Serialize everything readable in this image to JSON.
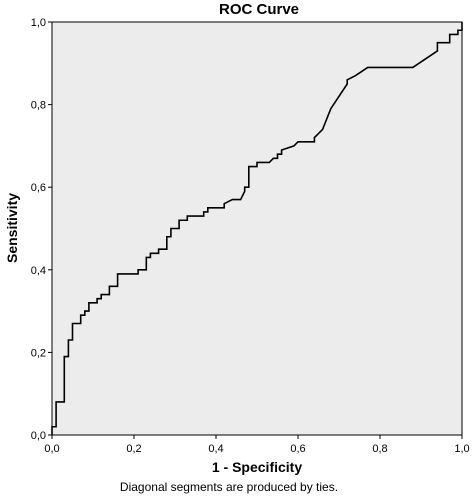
{
  "chart_data": {
    "type": "line",
    "title": "ROC Curve",
    "xlabel": "1 - Specificity",
    "ylabel": "Sensitivity",
    "footnote": "Diagonal segments are produced by ties.",
    "xlim": [
      0,
      1
    ],
    "ylim": [
      0,
      1
    ],
    "x_ticks": [
      "0,0",
      "0,2",
      "0,4",
      "0,6",
      "0,8",
      "1,0"
    ],
    "y_ticks": [
      "0,0",
      "0,2",
      "0,4",
      "0,6",
      "0,8",
      "1,0"
    ],
    "grid": false,
    "plot_background": "#ececec",
    "line_color": "#000000",
    "series": [
      {
        "x": [
          0.0,
          0.0,
          0.01,
          0.01,
          0.03,
          0.03,
          0.04,
          0.04,
          0.05,
          0.05,
          0.07,
          0.07,
          0.08,
          0.08,
          0.09,
          0.09,
          0.11,
          0.11,
          0.12,
          0.12,
          0.14,
          0.14,
          0.16,
          0.16,
          0.21,
          0.21,
          0.23,
          0.23,
          0.24,
          0.24,
          0.26,
          0.26,
          0.28,
          0.28,
          0.29,
          0.29,
          0.31,
          0.31,
          0.33,
          0.33,
          0.37,
          0.37,
          0.38,
          0.38,
          0.42,
          0.42,
          0.44,
          0.46,
          0.47,
          0.47,
          0.48,
          0.48,
          0.5,
          0.5,
          0.53,
          0.54,
          0.55,
          0.55,
          0.56,
          0.56,
          0.59,
          0.6,
          0.64,
          0.64,
          0.66,
          0.68,
          0.7,
          0.72,
          0.72,
          0.74,
          0.77,
          0.88,
          0.91,
          0.94,
          0.94,
          0.97,
          0.97,
          0.99,
          0.99,
          1.0,
          1.0
        ],
        "y": [
          0.0,
          0.02,
          0.02,
          0.08,
          0.08,
          0.19,
          0.19,
          0.23,
          0.23,
          0.27,
          0.27,
          0.29,
          0.29,
          0.3,
          0.3,
          0.32,
          0.32,
          0.33,
          0.33,
          0.34,
          0.34,
          0.36,
          0.36,
          0.39,
          0.39,
          0.4,
          0.4,
          0.43,
          0.43,
          0.44,
          0.44,
          0.45,
          0.45,
          0.48,
          0.48,
          0.5,
          0.5,
          0.52,
          0.52,
          0.53,
          0.53,
          0.54,
          0.54,
          0.55,
          0.55,
          0.56,
          0.57,
          0.57,
          0.59,
          0.6,
          0.6,
          0.65,
          0.65,
          0.66,
          0.66,
          0.67,
          0.67,
          0.68,
          0.68,
          0.69,
          0.7,
          0.71,
          0.71,
          0.72,
          0.74,
          0.79,
          0.82,
          0.85,
          0.86,
          0.87,
          0.89,
          0.89,
          0.91,
          0.93,
          0.95,
          0.95,
          0.97,
          0.97,
          0.98,
          0.98,
          1.0
        ]
      }
    ]
  }
}
